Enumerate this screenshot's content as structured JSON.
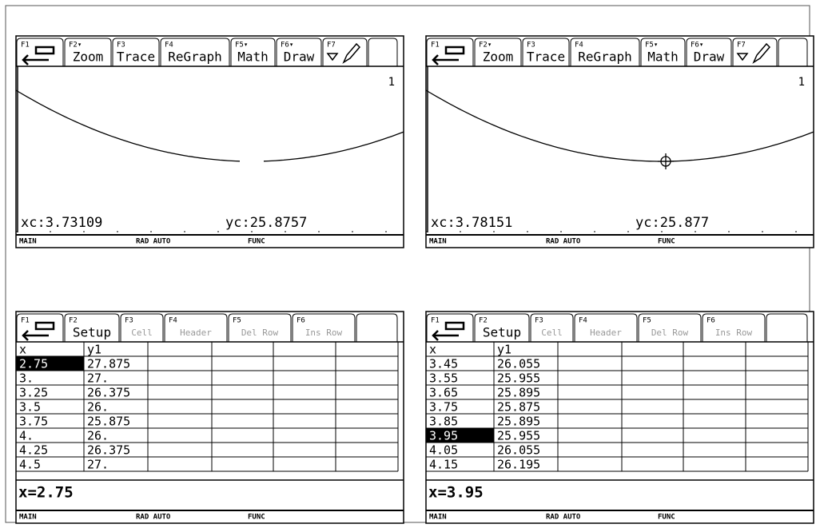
{
  "screens": [
    {
      "kind": "graph",
      "toolbar": [
        {
          "key": "F1"
        },
        {
          "key": "F2▾",
          "label": "Zoom"
        },
        {
          "key": "F3",
          "label": "Trace"
        },
        {
          "key": "F4",
          "label": "ReGraph"
        },
        {
          "key": "F5▾",
          "label": "Math"
        },
        {
          "key": "F6▾",
          "label": "Draw"
        },
        {
          "key": "F7"
        }
      ],
      "plot_number": "1",
      "xc": "xc:3.73109",
      "yc": "yc:25.8757",
      "trace_cursor": false,
      "status": [
        "MAIN",
        "RAD AUTO",
        "FUNC"
      ]
    },
    {
      "kind": "graph",
      "toolbar": [
        {
          "key": "F1"
        },
        {
          "key": "F2▾",
          "label": "Zoom"
        },
        {
          "key": "F3",
          "label": "Trace"
        },
        {
          "key": "F4",
          "label": "ReGraph"
        },
        {
          "key": "F5▾",
          "label": "Math"
        },
        {
          "key": "F6▾",
          "label": "Draw"
        },
        {
          "key": "F7"
        }
      ],
      "plot_number": "1",
      "xc": "xc:3.78151",
      "yc": "yc:25.877",
      "trace_cursor": true,
      "status": [
        "MAIN",
        "RAD AUTO",
        "FUNC"
      ]
    },
    {
      "kind": "table",
      "toolbar": [
        {
          "key": "F1"
        },
        {
          "key": "F2",
          "label": "Setup"
        },
        {
          "key": "F3",
          "label": "Cell",
          "dimmed": true
        },
        {
          "key": "F4",
          "label": "Header",
          "dimmed": true
        },
        {
          "key": "F5",
          "label": "Del Row",
          "dimmed": true
        },
        {
          "key": "F6",
          "label": "Ins Row",
          "dimmed": true
        }
      ],
      "columns": [
        "x",
        "y1"
      ],
      "rows": [
        [
          "2.75",
          "27.875"
        ],
        [
          "3.",
          "27."
        ],
        [
          "3.25",
          "26.375"
        ],
        [
          "3.5",
          "26."
        ],
        [
          "3.75",
          "25.875"
        ],
        [
          "4.",
          "26."
        ],
        [
          "4.25",
          "26.375"
        ],
        [
          "4.5",
          "27."
        ]
      ],
      "selected_row": 0,
      "entry": "x=2.75",
      "status": [
        "MAIN",
        "RAD AUTO",
        "FUNC"
      ]
    },
    {
      "kind": "table",
      "toolbar": [
        {
          "key": "F1"
        },
        {
          "key": "F2",
          "label": "Setup"
        },
        {
          "key": "F3",
          "label": "Cell",
          "dimmed": true
        },
        {
          "key": "F4",
          "label": "Header",
          "dimmed": true
        },
        {
          "key": "F5",
          "label": "Del Row",
          "dimmed": true
        },
        {
          "key": "F6",
          "label": "Ins Row",
          "dimmed": true
        }
      ],
      "columns": [
        "x",
        "y1"
      ],
      "rows": [
        [
          "3.45",
          "26.055"
        ],
        [
          "3.55",
          "25.955"
        ],
        [
          "3.65",
          "25.895"
        ],
        [
          "3.75",
          "25.875"
        ],
        [
          "3.85",
          "25.895"
        ],
        [
          "3.95",
          "25.955"
        ],
        [
          "4.05",
          "26.055"
        ],
        [
          "4.15",
          "26.195"
        ]
      ],
      "selected_row": 5,
      "entry": "x=3.95",
      "status": [
        "MAIN",
        "RAD AUTO",
        "FUNC"
      ]
    }
  ]
}
